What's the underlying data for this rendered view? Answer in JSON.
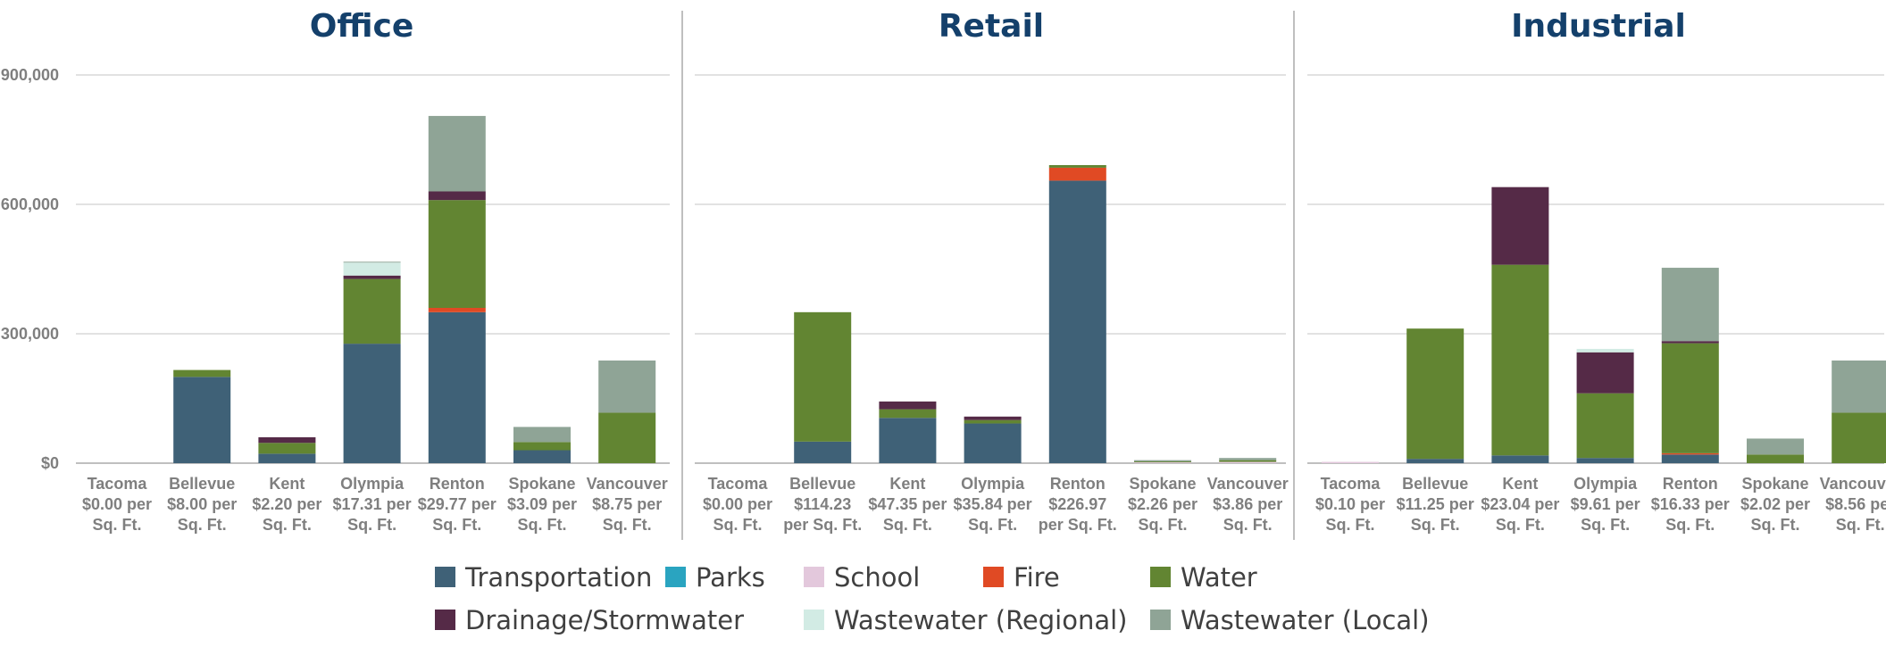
{
  "chart_data": {
    "type": "bar",
    "stacked": true,
    "yticks": [
      "$0",
      "300,000",
      "600,000",
      "900,000"
    ],
    "ylim": [
      0,
      900000
    ],
    "grid": true,
    "legend_position": "bottom",
    "series_names": [
      "Transportation",
      "Parks",
      "School",
      "Fire",
      "Water",
      "Drainage/Stormwater",
      "Wastewater (Regional)",
      "Wastewater (Local)"
    ],
    "colors": {
      "Transportation": "#3f6177",
      "Parks": "#2aa4c0",
      "School": "#e3c8dc",
      "Fire": "#e04a24",
      "Water": "#628532",
      "Drainage/Stormwater": "#552a47",
      "Wastewater (Regional)": "#d2ebe4",
      "Wastewater (Local)": "#8fa496",
      "title": "#14406b"
    },
    "panels": [
      {
        "title": "Office",
        "categories": [
          "Tacoma",
          "Bellevue",
          "Kent",
          "Olympia",
          "Renton",
          "Spokane",
          "Vancouver"
        ],
        "category_labels": [
          [
            "Tacoma",
            "$0.00 per",
            "Sq. Ft."
          ],
          [
            "Bellevue",
            "$8.00 per",
            "Sq. Ft."
          ],
          [
            "Kent",
            "$2.20 per",
            "Sq. Ft."
          ],
          [
            "Olympia",
            "$17.31 per",
            "Sq. Ft."
          ],
          [
            "Renton",
            "$29.77 per",
            "Sq. Ft."
          ],
          [
            "Spokane",
            "$3.09 per",
            "Sq. Ft."
          ],
          [
            "Vancouver",
            "$8.75 per",
            "Sq. Ft."
          ]
        ],
        "series": [
          {
            "name": "Transportation",
            "values": [
              0,
              200000,
              22000,
              277000,
              350000,
              30000,
              0
            ]
          },
          {
            "name": "Parks",
            "values": [
              0,
              0,
              0,
              0,
              0,
              0,
              0
            ]
          },
          {
            "name": "School",
            "values": [
              0,
              0,
              0,
              0,
              0,
              0,
              0
            ]
          },
          {
            "name": "Fire",
            "values": [
              0,
              0,
              0,
              0,
              10000,
              0,
              0
            ]
          },
          {
            "name": "Water",
            "values": [
              0,
              16000,
              25000,
              150000,
              250000,
              19000,
              117000
            ]
          },
          {
            "name": "Drainage/Stormwater",
            "values": [
              0,
              0,
              13000,
              8000,
              20000,
              0,
              0
            ]
          },
          {
            "name": "Wastewater (Regional)",
            "values": [
              0,
              0,
              0,
              30000,
              0,
              0,
              0
            ]
          },
          {
            "name": "Wastewater (Local)",
            "values": [
              0,
              0,
              0,
              2000,
              175000,
              35000,
              121000
            ]
          }
        ]
      },
      {
        "title": "Retail",
        "categories": [
          "Tacoma",
          "Bellevue",
          "Kent",
          "Olympia",
          "Renton",
          "Spokane",
          "Vancouver"
        ],
        "category_labels": [
          [
            "Tacoma",
            "$0.00 per",
            "Sq. Ft."
          ],
          [
            "Bellevue",
            "$114.23",
            "per Sq. Ft."
          ],
          [
            "Kent",
            "$47.35 per",
            "Sq. Ft."
          ],
          [
            "Olympia",
            "$35.84 per",
            "Sq. Ft."
          ],
          [
            "Renton",
            "$226.97",
            "per Sq. Ft."
          ],
          [
            "Spokane",
            "$2.26 per",
            "Sq. Ft."
          ],
          [
            "Vancouver",
            "$3.86 per",
            "Sq. Ft."
          ]
        ],
        "series": [
          {
            "name": "Transportation",
            "values": [
              0,
              50000,
              105000,
              92000,
              655000,
              0,
              0
            ]
          },
          {
            "name": "Parks",
            "values": [
              0,
              0,
              0,
              0,
              0,
              0,
              0
            ]
          },
          {
            "name": "School",
            "values": [
              0,
              0,
              0,
              0,
              0,
              2000,
              3000
            ]
          },
          {
            "name": "Fire",
            "values": [
              0,
              0,
              0,
              0,
              30000,
              0,
              0
            ]
          },
          {
            "name": "Water",
            "values": [
              0,
              300000,
              20000,
              8000,
              6000,
              2000,
              4000
            ]
          },
          {
            "name": "Drainage/Stormwater",
            "values": [
              0,
              0,
              18000,
              8000,
              0,
              0,
              0
            ]
          },
          {
            "name": "Wastewater (Regional)",
            "values": [
              0,
              0,
              0,
              0,
              0,
              0,
              0
            ]
          },
          {
            "name": "Wastewater (Local)",
            "values": [
              0,
              0,
              0,
              0,
              0,
              3000,
              5000
            ]
          }
        ]
      },
      {
        "title": "Industrial",
        "categories": [
          "Tacoma",
          "Bellevue",
          "Kent",
          "Olympia",
          "Renton",
          "Spokane",
          "Vancouver"
        ],
        "category_labels": [
          [
            "Tacoma",
            "$0.10 per",
            "Sq. Ft."
          ],
          [
            "Bellevue",
            "$11.25 per",
            "Sq. Ft."
          ],
          [
            "Kent",
            "$23.04 per",
            "Sq. Ft."
          ],
          [
            "Olympia",
            "$9.61 per",
            "Sq. Ft."
          ],
          [
            "Renton",
            "$16.33 per",
            "Sq. Ft."
          ],
          [
            "Spokane",
            "$2.02 per",
            "Sq. Ft."
          ],
          [
            "Vancouver",
            "$8.56 per",
            "Sq. Ft."
          ]
        ],
        "series": [
          {
            "name": "Transportation",
            "values": [
              0,
              10000,
              18000,
              12000,
              20000,
              0,
              0
            ]
          },
          {
            "name": "Parks",
            "values": [
              0,
              0,
              0,
              0,
              0,
              0,
              0
            ]
          },
          {
            "name": "School",
            "values": [
              3000,
              0,
              0,
              0,
              0,
              0,
              0
            ]
          },
          {
            "name": "Fire",
            "values": [
              0,
              0,
              0,
              0,
              3000,
              0,
              0
            ]
          },
          {
            "name": "Water",
            "values": [
              0,
              302000,
              442000,
              150000,
              255000,
              20000,
              117000
            ]
          },
          {
            "name": "Drainage/Stormwater",
            "values": [
              0,
              0,
              180000,
              95000,
              5000,
              0,
              0
            ]
          },
          {
            "name": "Wastewater (Regional)",
            "values": [
              0,
              0,
              0,
              8000,
              0,
              0,
              0
            ]
          },
          {
            "name": "Wastewater (Local)",
            "values": [
              0,
              0,
              0,
              0,
              170000,
              37000,
              121000
            ]
          }
        ]
      }
    ]
  }
}
